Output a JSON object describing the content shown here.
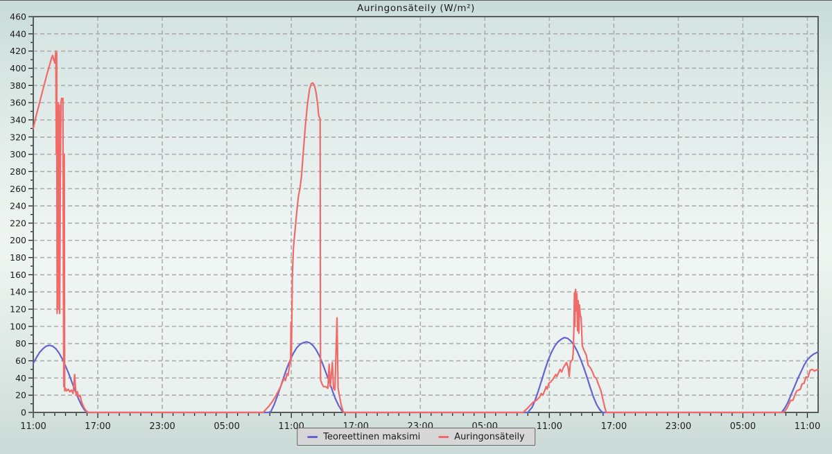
{
  "page": {
    "title": "Auringonsäteily (W/m²)"
  },
  "chart_data": {
    "type": "line",
    "title": "Auringonsäteily (W/m²)",
    "xlabel": "",
    "ylabel": "W/m²",
    "grid": true,
    "grid_style": "dashed",
    "legend_position": "bottom-center",
    "x_axis": {
      "unit": "hours-from-start",
      "range": [
        0,
        73
      ],
      "major_tick_every": 6,
      "minor_tick_every": 1,
      "tick_labels": [
        "11:00",
        "17:00",
        "23:00",
        "05:00",
        "11:00",
        "17:00",
        "23:00",
        "05:00",
        "11:00",
        "17:00",
        "23:00",
        "05:00",
        "11:00"
      ],
      "tick_hours": [
        0,
        6,
        12,
        18,
        24,
        30,
        36,
        42,
        48,
        54,
        60,
        66,
        72
      ]
    },
    "y_axis": {
      "range": [
        0,
        460
      ],
      "major_tick_every": 20,
      "minor_tick_every": 10
    },
    "series": [
      {
        "name": "Teoreettinen maksimi",
        "color": "#6363cf",
        "points": [
          [
            0,
            57
          ],
          [
            0.3,
            64
          ],
          [
            0.6,
            70
          ],
          [
            0.9,
            74
          ],
          [
            1.2,
            77
          ],
          [
            1.5,
            78
          ],
          [
            1.8,
            77
          ],
          [
            2.1,
            74
          ],
          [
            2.4,
            69
          ],
          [
            2.7,
            62
          ],
          [
            3.0,
            54
          ],
          [
            3.3,
            45
          ],
          [
            3.6,
            35
          ],
          [
            3.9,
            25
          ],
          [
            4.2,
            16
          ],
          [
            4.5,
            8
          ],
          [
            4.75,
            3
          ],
          [
            5.0,
            0
          ],
          [
            21.9,
            0
          ],
          [
            22.1,
            1
          ],
          [
            22.4,
            9
          ],
          [
            22.7,
            19
          ],
          [
            23.0,
            30
          ],
          [
            23.3,
            41
          ],
          [
            23.6,
            52
          ],
          [
            23.9,
            61
          ],
          [
            24.2,
            69
          ],
          [
            24.5,
            75
          ],
          [
            24.8,
            79
          ],
          [
            25.1,
            81
          ],
          [
            25.4,
            82
          ],
          [
            25.7,
            81
          ],
          [
            26.0,
            78
          ],
          [
            26.3,
            73
          ],
          [
            26.6,
            66
          ],
          [
            26.9,
            57
          ],
          [
            27.2,
            47
          ],
          [
            27.5,
            37
          ],
          [
            27.8,
            26
          ],
          [
            28.1,
            16
          ],
          [
            28.4,
            8
          ],
          [
            28.7,
            2
          ],
          [
            28.95,
            0
          ],
          [
            46.0,
            0
          ],
          [
            46.4,
            6
          ],
          [
            46.7,
            15
          ],
          [
            47.0,
            26
          ],
          [
            47.3,
            38
          ],
          [
            47.6,
            50
          ],
          [
            47.9,
            61
          ],
          [
            48.2,
            70
          ],
          [
            48.5,
            77
          ],
          [
            48.8,
            82
          ],
          [
            49.1,
            85
          ],
          [
            49.4,
            87
          ],
          [
            49.7,
            86
          ],
          [
            50.0,
            83
          ],
          [
            50.3,
            78
          ],
          [
            50.6,
            71
          ],
          [
            50.9,
            62
          ],
          [
            51.2,
            52
          ],
          [
            51.5,
            41
          ],
          [
            51.8,
            29
          ],
          [
            52.1,
            18
          ],
          [
            52.4,
            9
          ],
          [
            52.7,
            3
          ],
          [
            52.95,
            0
          ],
          [
            69.6,
            0
          ],
          [
            69.9,
            5
          ],
          [
            70.2,
            12
          ],
          [
            70.5,
            21
          ],
          [
            70.8,
            30
          ],
          [
            71.1,
            39
          ],
          [
            71.4,
            47
          ],
          [
            71.7,
            55
          ],
          [
            72.0,
            61
          ],
          [
            72.3,
            65
          ],
          [
            72.6,
            68
          ],
          [
            72.97,
            70
          ]
        ]
      },
      {
        "name": "Auringonsäteily",
        "color": "#f16a6a",
        "points": [
          [
            0,
            330
          ],
          [
            0.25,
            344
          ],
          [
            0.5,
            356
          ],
          [
            0.75,
            368
          ],
          [
            1.0,
            380
          ],
          [
            1.25,
            392
          ],
          [
            1.5,
            403
          ],
          [
            1.7,
            412
          ],
          [
            1.8,
            415
          ],
          [
            1.9,
            410
          ],
          [
            2.0,
            406
          ],
          [
            2.05,
            413
          ],
          [
            2.1,
            420
          ],
          [
            2.14,
            300
          ],
          [
            2.18,
            418
          ],
          [
            2.22,
            115
          ],
          [
            2.26,
            355
          ],
          [
            2.3,
            120
          ],
          [
            2.34,
            360
          ],
          [
            2.38,
            150
          ],
          [
            2.42,
            357
          ],
          [
            2.46,
            115
          ],
          [
            2.52,
            280
          ],
          [
            2.58,
            360
          ],
          [
            2.64,
            365
          ],
          [
            2.7,
            363
          ],
          [
            2.76,
            365
          ],
          [
            2.8,
            155
          ],
          [
            2.84,
            30
          ],
          [
            2.88,
            300
          ],
          [
            2.92,
            25
          ],
          [
            3.0,
            28
          ],
          [
            3.1,
            25
          ],
          [
            3.25,
            27
          ],
          [
            3.4,
            24
          ],
          [
            3.55,
            26
          ],
          [
            3.7,
            22
          ],
          [
            3.85,
            44
          ],
          [
            3.92,
            30
          ],
          [
            4.0,
            20
          ],
          [
            4.1,
            24
          ],
          [
            4.2,
            18
          ],
          [
            4.35,
            20
          ],
          [
            4.5,
            12
          ],
          [
            4.7,
            6
          ],
          [
            4.9,
            2
          ],
          [
            5.1,
            0
          ],
          [
            21.4,
            0
          ],
          [
            21.6,
            3
          ],
          [
            21.9,
            7
          ],
          [
            22.2,
            12
          ],
          [
            22.5,
            18
          ],
          [
            22.8,
            25
          ],
          [
            23.0,
            30
          ],
          [
            23.2,
            36
          ],
          [
            23.35,
            40
          ],
          [
            23.45,
            37
          ],
          [
            23.6,
            45
          ],
          [
            23.7,
            43
          ],
          [
            23.8,
            52
          ],
          [
            23.87,
            60
          ],
          [
            23.93,
            57
          ],
          [
            23.97,
            105
          ],
          [
            24.0,
            62
          ],
          [
            24.04,
            100
          ],
          [
            24.1,
            160
          ],
          [
            24.2,
            192
          ],
          [
            24.35,
            212
          ],
          [
            24.5,
            232
          ],
          [
            24.65,
            250
          ],
          [
            24.82,
            262
          ],
          [
            24.95,
            275
          ],
          [
            25.1,
            300
          ],
          [
            25.3,
            332
          ],
          [
            25.5,
            358
          ],
          [
            25.7,
            376
          ],
          [
            25.85,
            382
          ],
          [
            26.0,
            383
          ],
          [
            26.15,
            380
          ],
          [
            26.3,
            372
          ],
          [
            26.45,
            358
          ],
          [
            26.55,
            345
          ],
          [
            26.68,
            341
          ],
          [
            26.72,
            38
          ],
          [
            26.85,
            33
          ],
          [
            27.0,
            30
          ],
          [
            27.2,
            30
          ],
          [
            27.4,
            28
          ],
          [
            27.52,
            56
          ],
          [
            27.62,
            30
          ],
          [
            27.82,
            58
          ],
          [
            27.92,
            28
          ],
          [
            28.05,
            26
          ],
          [
            28.25,
            110
          ],
          [
            28.35,
            28
          ],
          [
            28.5,
            18
          ],
          [
            28.65,
            8
          ],
          [
            28.85,
            0
          ],
          [
            45.55,
            0
          ],
          [
            45.9,
            4
          ],
          [
            46.2,
            8
          ],
          [
            46.5,
            12
          ],
          [
            46.8,
            14
          ],
          [
            47.1,
            18
          ],
          [
            47.25,
            22
          ],
          [
            47.4,
            20
          ],
          [
            47.55,
            25
          ],
          [
            47.7,
            30
          ],
          [
            47.8,
            27
          ],
          [
            47.95,
            34
          ],
          [
            48.1,
            35
          ],
          [
            48.3,
            38
          ],
          [
            48.45,
            41
          ],
          [
            48.6,
            44
          ],
          [
            48.7,
            42
          ],
          [
            48.85,
            46
          ],
          [
            49.0,
            50
          ],
          [
            49.15,
            47
          ],
          [
            49.3,
            52
          ],
          [
            49.5,
            56
          ],
          [
            49.6,
            58
          ],
          [
            49.75,
            52
          ],
          [
            49.85,
            42
          ],
          [
            49.95,
            58
          ],
          [
            50.05,
            60
          ],
          [
            50.15,
            61
          ],
          [
            50.22,
            70
          ],
          [
            50.28,
            96
          ],
          [
            50.33,
            139
          ],
          [
            50.38,
            100
          ],
          [
            50.44,
            143
          ],
          [
            50.5,
            118
          ],
          [
            50.56,
            138
          ],
          [
            50.62,
            95
          ],
          [
            50.68,
            130
          ],
          [
            50.74,
            92
          ],
          [
            50.8,
            125
          ],
          [
            50.88,
            113
          ],
          [
            50.96,
            110
          ],
          [
            51.06,
            78
          ],
          [
            51.19,
            73
          ],
          [
            51.32,
            70
          ],
          [
            51.45,
            66
          ],
          [
            51.6,
            55
          ],
          [
            51.75,
            53
          ],
          [
            51.9,
            50
          ],
          [
            52.05,
            46
          ],
          [
            52.2,
            41
          ],
          [
            52.35,
            40
          ],
          [
            52.5,
            35
          ],
          [
            52.65,
            30
          ],
          [
            52.8,
            25
          ],
          [
            53.0,
            14
          ],
          [
            53.15,
            6
          ],
          [
            53.3,
            0
          ],
          [
            69.75,
            0
          ],
          [
            70.0,
            3
          ],
          [
            70.15,
            6
          ],
          [
            70.3,
            10
          ],
          [
            70.45,
            14
          ],
          [
            70.65,
            14
          ],
          [
            70.8,
            19
          ],
          [
            71.0,
            25
          ],
          [
            71.2,
            26
          ],
          [
            71.35,
            27
          ],
          [
            71.5,
            33
          ],
          [
            71.7,
            34
          ],
          [
            71.85,
            41
          ],
          [
            72.05,
            41
          ],
          [
            72.25,
            49
          ],
          [
            72.45,
            50
          ],
          [
            72.65,
            48
          ],
          [
            72.97,
            50
          ]
        ]
      }
    ],
    "colors": {
      "grid": "#adadad",
      "frame": "#565b5b",
      "plot_bg_top": "#d5e4e1",
      "plot_bg_mid": "#f1f6f4",
      "plot_bg_bottom": "#e8f0ed"
    }
  }
}
